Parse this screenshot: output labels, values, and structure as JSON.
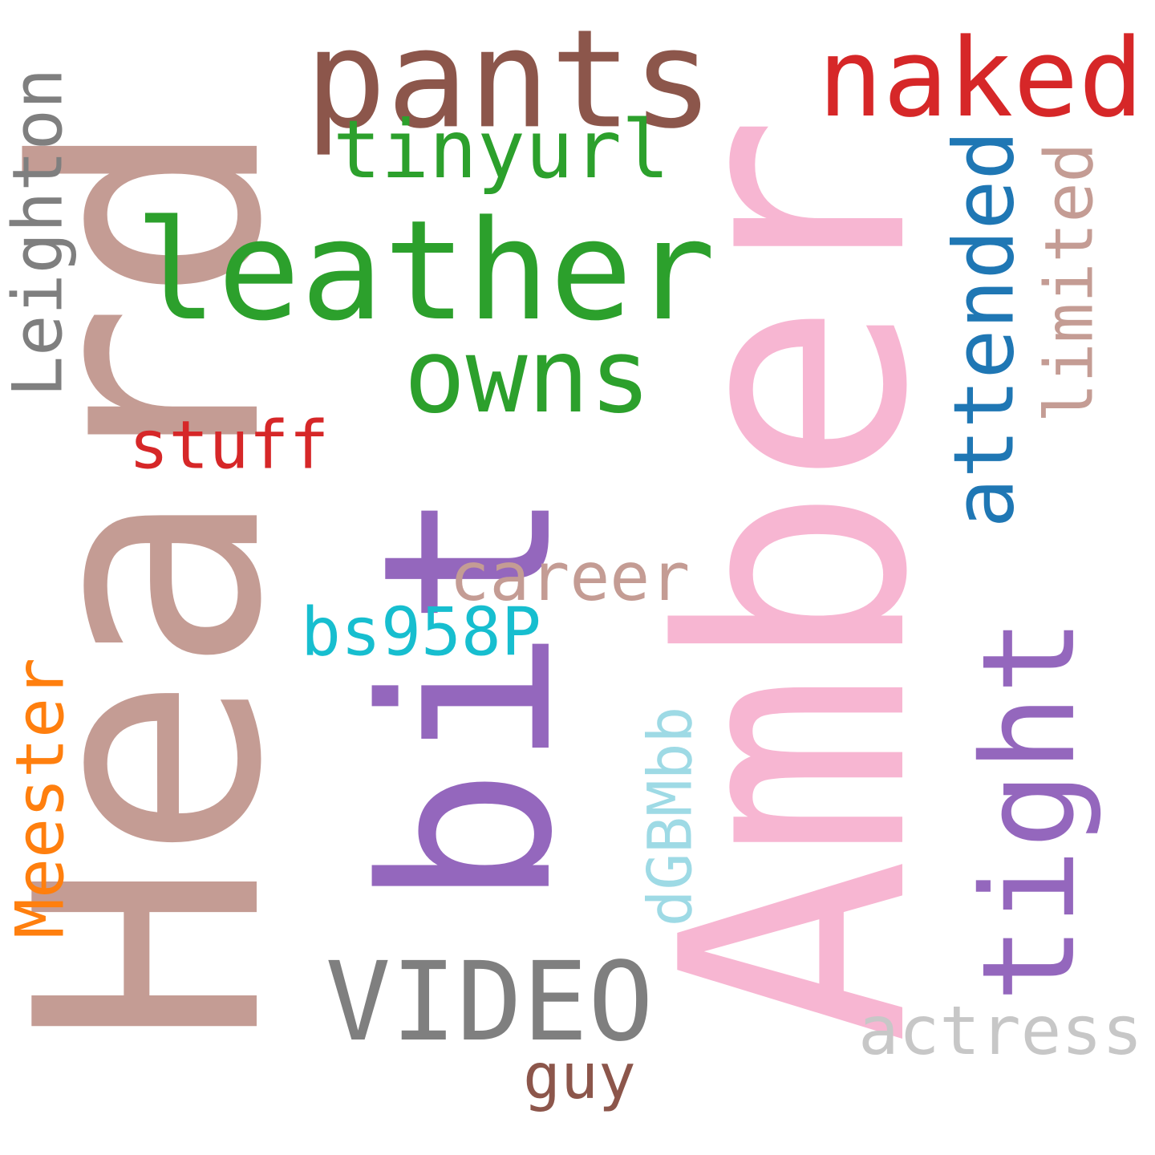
{
  "words": [
    {
      "id": "heard",
      "text": "Heard",
      "color": "#c49c94",
      "orientation": "vertical"
    },
    {
      "id": "amber",
      "text": "Amber",
      "color": "#f7b6d2",
      "orientation": "vertical"
    },
    {
      "id": "bit",
      "text": "bit",
      "color": "#9467bd",
      "orientation": "vertical"
    },
    {
      "id": "pants",
      "text": "pants",
      "color": "#8c564b",
      "orientation": "horizontal"
    },
    {
      "id": "leather",
      "text": "leather",
      "color": "#2ca02c",
      "orientation": "horizontal"
    },
    {
      "id": "naked",
      "text": "naked",
      "color": "#d62728",
      "orientation": "horizontal"
    },
    {
      "id": "owns",
      "text": "owns",
      "color": "#2ca02c",
      "orientation": "horizontal"
    },
    {
      "id": "tinyurl",
      "text": "tinyurl",
      "color": "#2ca02c",
      "orientation": "horizontal"
    },
    {
      "id": "tight",
      "text": "tight",
      "color": "#9467bd",
      "orientation": "vertical"
    },
    {
      "id": "video",
      "text": "VIDEO",
      "color": "#7f7f7f",
      "orientation": "horizontal"
    },
    {
      "id": "leighton",
      "text": "Leighton",
      "color": "#7f7f7f",
      "orientation": "vertical"
    },
    {
      "id": "attended",
      "text": "attended",
      "color": "#1f77b4",
      "orientation": "vertical"
    },
    {
      "id": "meester",
      "text": "Meester",
      "color": "#ff7f0e",
      "orientation": "vertical"
    },
    {
      "id": "career",
      "text": "career",
      "color": "#c49c94",
      "orientation": "horizontal"
    },
    {
      "id": "bs958p",
      "text": "bs958P",
      "color": "#17becf",
      "orientation": "horizontal"
    },
    {
      "id": "stuff",
      "text": "stuff",
      "color": "#d62728",
      "orientation": "horizontal"
    },
    {
      "id": "actress",
      "text": "actress",
      "color": "#c7c7c7",
      "orientation": "horizontal"
    },
    {
      "id": "limited",
      "text": "limited",
      "color": "#c49c94",
      "orientation": "vertical"
    },
    {
      "id": "dgbmbb",
      "text": "dGBMbb",
      "color": "#9edae5",
      "orientation": "vertical"
    },
    {
      "id": "guy",
      "text": "guy",
      "color": "#8c564b",
      "orientation": "horizontal"
    }
  ]
}
